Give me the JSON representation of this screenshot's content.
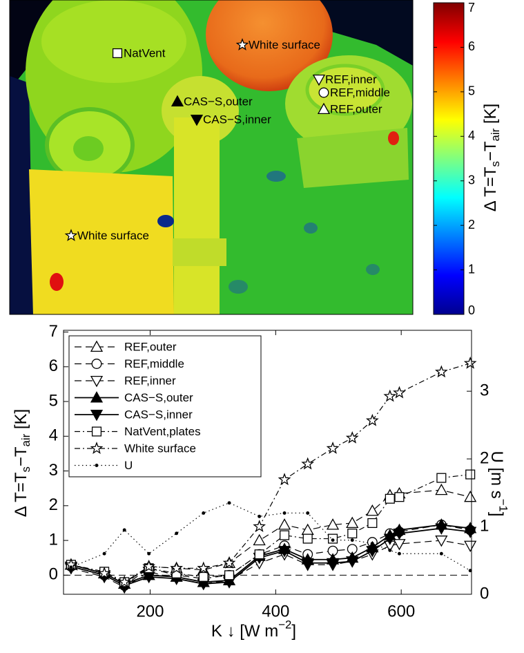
{
  "chart_data": [
    {
      "type": "image",
      "annotations": [
        {
          "label": "NatVent",
          "marker": "square",
          "fill": "#ffffff"
        },
        {
          "label": "White surface",
          "marker": "star",
          "fill": "#ffffff"
        },
        {
          "label": "REF,inner",
          "marker": "tri-down",
          "fill": "#ffffff"
        },
        {
          "label": "REF,middle",
          "marker": "circle",
          "fill": "#ffffff"
        },
        {
          "label": "REF,outer",
          "marker": "tri-up",
          "fill": "#ffffff"
        },
        {
          "label": "CAS−S,outer",
          "marker": "tri-up",
          "fill": "#000000"
        },
        {
          "label": "CAS−S,inner",
          "marker": "tri-down",
          "fill": "#000000"
        },
        {
          "label": "White surface",
          "marker": "star",
          "fill": "#ffffff"
        }
      ],
      "colorbar": {
        "label_parts": [
          "Δ T=T",
          "s",
          "−T",
          "air",
          " [K]"
        ],
        "lim": [
          0,
          7
        ],
        "ticks": [
          0,
          1,
          2,
          3,
          4,
          5,
          6,
          7
        ],
        "colormap": "jet"
      }
    },
    {
      "type": "line",
      "x": [
        74,
        127,
        159,
        198,
        242,
        285,
        326,
        374,
        414,
        451,
        491,
        522,
        554,
        582,
        597,
        664,
        710
      ],
      "xlim": [
        62,
        712
      ],
      "ylim": [
        -0.55,
        7.05
      ],
      "y2lim": [
        0,
        3.9
      ],
      "xticks": [
        200,
        400,
        600
      ],
      "yticks": [
        0,
        1,
        2,
        3,
        4,
        5,
        6,
        7
      ],
      "y2ticks": [
        0,
        1,
        2,
        3
      ],
      "xlabel_parts": [
        "K ↓ [W m",
        "−2",
        "]"
      ],
      "ylabel_parts": [
        "Δ T=T",
        "s",
        "−T",
        "air",
        " [K]"
      ],
      "y2label_parts": [
        "U [m s",
        "−1",
        "]"
      ],
      "legend": "upper left",
      "series": [
        {
          "name": "REF,outer",
          "color": "#000000",
          "marker": "tri-up",
          "filled": false,
          "linestyle": "dashed",
          "values": [
            0.3,
            0.05,
            -0.25,
            0.25,
            0.2,
            0.15,
            0.35,
            1.0,
            1.45,
            1.3,
            1.45,
            1.5,
            1.85,
            2.3,
            2.35,
            2.45,
            2.25
          ]
        },
        {
          "name": "REF,middle",
          "color": "#000000",
          "marker": "circle",
          "filled": false,
          "linestyle": "dashed",
          "values": [
            0.25,
            0.0,
            -0.3,
            0.2,
            0.0,
            -0.1,
            0.0,
            0.6,
            0.85,
            0.6,
            0.7,
            0.75,
            0.95,
            1.2,
            1.25,
            1.45,
            1.3
          ]
        },
        {
          "name": "REF,inner",
          "color": "#000000",
          "marker": "tri-down",
          "filled": false,
          "linestyle": "dashed",
          "values": [
            0.2,
            -0.05,
            -0.35,
            0.1,
            -0.1,
            -0.25,
            -0.15,
            0.35,
            0.6,
            0.3,
            0.3,
            0.4,
            0.6,
            0.85,
            0.9,
            1.0,
            0.85
          ]
        },
        {
          "name": "CAS−S,outer",
          "color": "#000000",
          "marker": "tri-up",
          "filled": true,
          "linestyle": "solid",
          "values": [
            0.3,
            0.05,
            -0.25,
            0.0,
            -0.05,
            -0.2,
            -0.15,
            0.55,
            0.75,
            0.45,
            0.45,
            0.5,
            0.8,
            1.15,
            1.3,
            1.45,
            1.35
          ]
        },
        {
          "name": "CAS−S,inner",
          "color": "#000000",
          "marker": "tri-down",
          "filled": true,
          "linestyle": "solid",
          "values": [
            0.25,
            0.0,
            -0.3,
            -0.05,
            -0.1,
            -0.25,
            -0.2,
            0.5,
            0.7,
            0.35,
            0.35,
            0.4,
            0.7,
            1.05,
            1.2,
            1.35,
            1.25
          ]
        },
        {
          "name": "NatVent,plates",
          "color": "#000000",
          "marker": "square",
          "filled": false,
          "linestyle": "dashdot",
          "values": [
            0.3,
            0.1,
            -0.2,
            0.2,
            0.05,
            -0.05,
            0.0,
            0.6,
            1.15,
            1.05,
            1.05,
            1.2,
            1.5,
            2.2,
            2.25,
            2.8,
            2.9
          ]
        },
        {
          "name": "White surface",
          "color": "#000000",
          "marker": "star",
          "filled": false,
          "linestyle": "dashdot",
          "values": [
            0.3,
            0.05,
            -0.2,
            0.25,
            0.2,
            0.2,
            0.35,
            1.4,
            2.75,
            3.2,
            3.65,
            3.95,
            4.45,
            5.15,
            5.25,
            5.85,
            6.1
          ]
        },
        {
          "name": "U",
          "color": "#000000",
          "marker": "dot",
          "filled": true,
          "linestyle": "dotted",
          "axis": "y2",
          "values": [
            0.4,
            0.6,
            0.95,
            0.6,
            0.9,
            1.2,
            1.35,
            1.15,
            1.2,
            1.2,
            0.8,
            0.8,
            0.75,
            0.65,
            0.6,
            0.6,
            0.35
          ]
        }
      ]
    }
  ]
}
